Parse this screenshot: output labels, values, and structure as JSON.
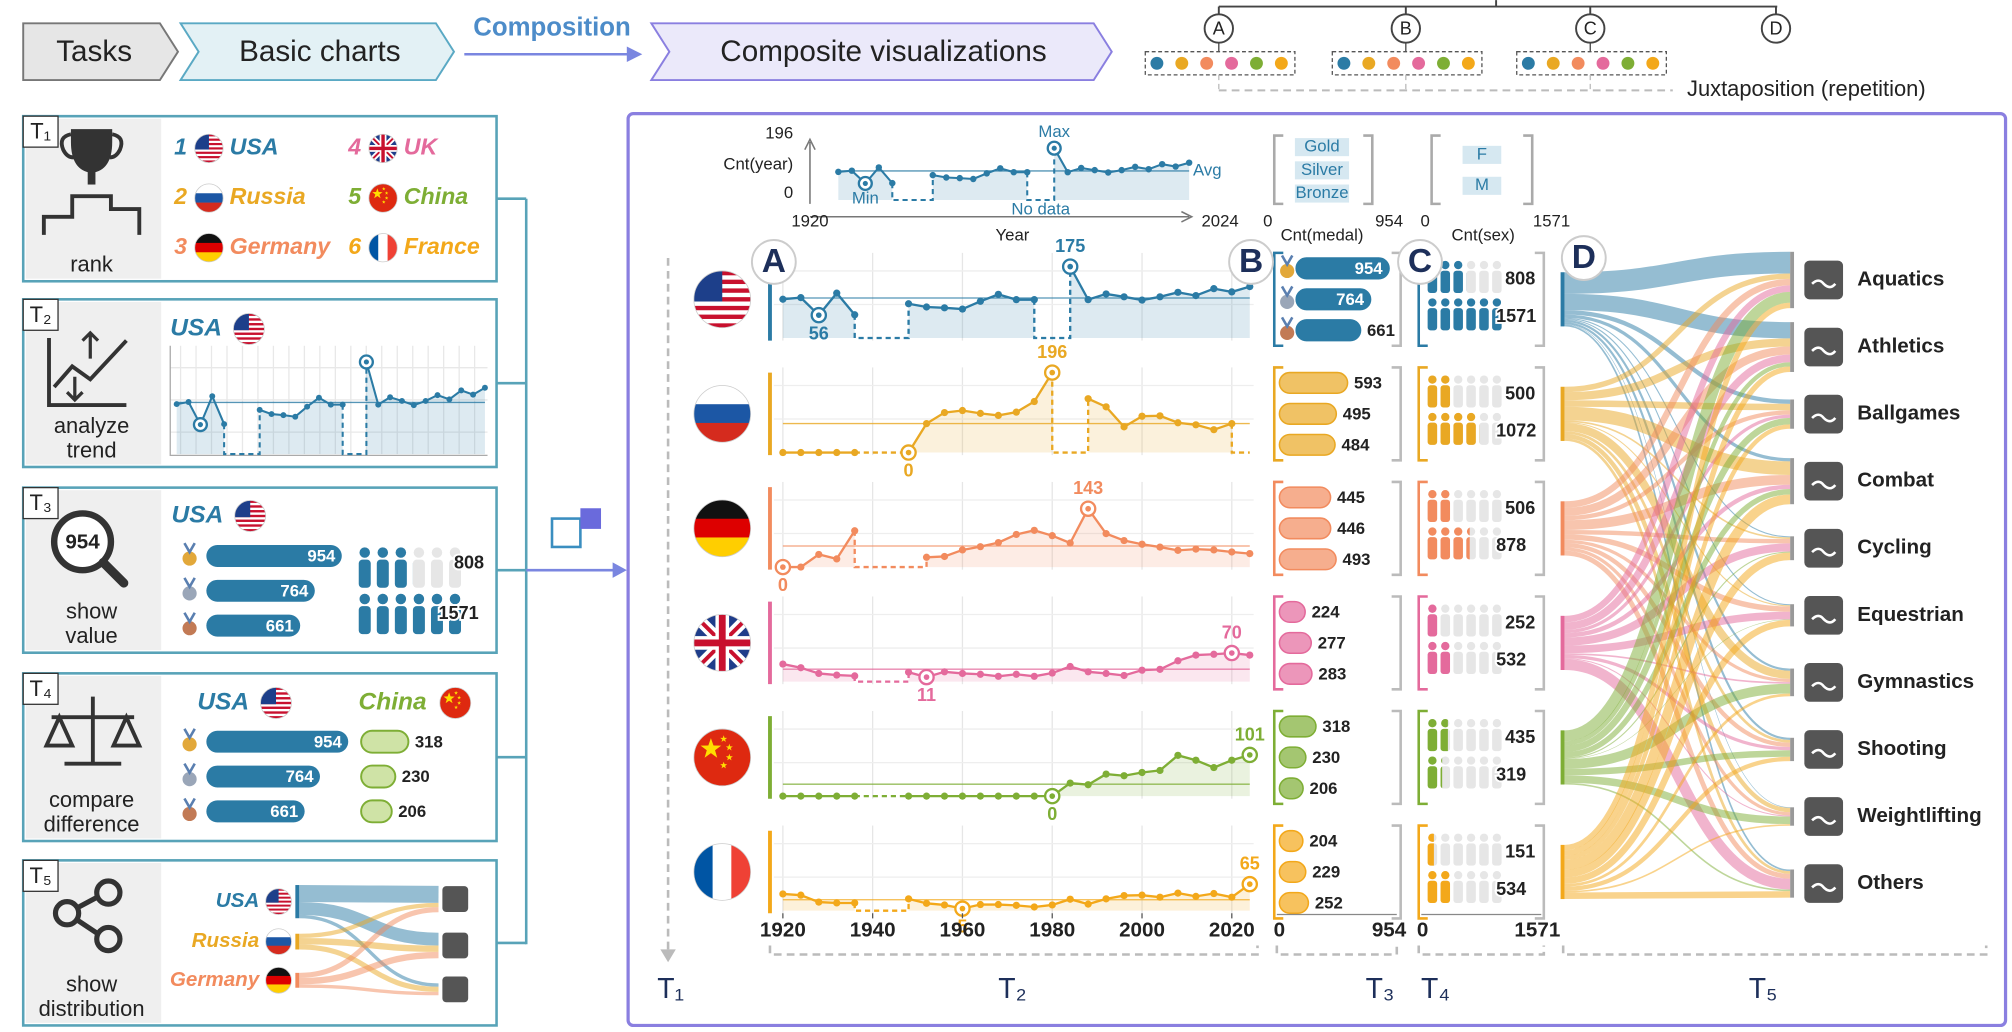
{
  "header": {
    "tasks": "Tasks",
    "basic_charts": "Basic charts",
    "composition": "Composition",
    "composite": "Composite visualizations",
    "tree": [
      "A",
      "B",
      "C",
      "D"
    ],
    "juxtaposition": "Juxtaposition (repetition)"
  },
  "tasks": [
    {
      "id": "T₁",
      "name": [
        "rank"
      ]
    },
    {
      "id": "T₂",
      "name": [
        "analyze",
        "trend"
      ]
    },
    {
      "id": "T₃",
      "name": [
        "show",
        "value"
      ]
    },
    {
      "id": "T₄",
      "name": [
        "compare",
        "difference"
      ]
    },
    {
      "id": "T₅",
      "name": [
        "show",
        "distribution"
      ]
    }
  ],
  "countries": [
    {
      "rank": 1,
      "name": "USA",
      "color": "#2b7ba5"
    },
    {
      "rank": 2,
      "name": "Russia",
      "color": "#e9a823"
    },
    {
      "rank": 3,
      "name": "Germany",
      "color": "#f28b5e"
    },
    {
      "rank": 4,
      "name": "UK",
      "color": "#e46a9c"
    },
    {
      "rank": 5,
      "name": "China",
      "color": "#7eae35"
    },
    {
      "rank": 6,
      "name": "France",
      "color": "#f3a81a"
    }
  ],
  "overview": {
    "y_title": "Cnt(year)",
    "ylim": [
      0,
      196
    ],
    "x_title": "Year",
    "xlim": [
      1920,
      2024
    ],
    "min": "Min",
    "max": "Max",
    "avg": "Avg",
    "no_data": "No data"
  },
  "medal_axis": {
    "title": "Cnt(medal)",
    "lim": [
      0,
      954
    ],
    "types": [
      "Gold",
      "Silver",
      "Bronze"
    ]
  },
  "sex_axis": {
    "title": "Cnt(sex)",
    "lim": [
      0,
      1571
    ],
    "types": [
      "F",
      "M"
    ]
  },
  "years": [
    1920,
    1924,
    1928,
    1932,
    1936,
    1940,
    1944,
    1948,
    1952,
    1956,
    1960,
    1964,
    1968,
    1972,
    1976,
    1980,
    1984,
    1988,
    1992,
    1996,
    2000,
    2004,
    2008,
    2012,
    2016,
    2020,
    2024
  ],
  "xticks": [
    1920,
    1940,
    1960,
    1980,
    2000,
    2020
  ],
  "rows": [
    {
      "values": [
        95,
        99,
        56,
        110,
        57,
        null,
        null,
        84,
        76,
        74,
        71,
        90,
        107,
        94,
        94,
        null,
        175,
        94,
        108,
        101,
        93,
        101,
        112,
        104,
        121,
        113,
        126
      ],
      "highlights": [
        2,
        16
      ],
      "medals": [
        954,
        764,
        661
      ],
      "sex": [
        808,
        1571
      ]
    },
    {
      "values": [
        0,
        0,
        0,
        0,
        0,
        null,
        null,
        0,
        71,
        98,
        103,
        96,
        91,
        99,
        125,
        196,
        null,
        132,
        112,
        63,
        89,
        90,
        73,
        68,
        56,
        71,
        null
      ],
      "highlights": [
        7,
        15
      ],
      "medals": [
        593,
        495,
        484
      ],
      "sex": [
        500,
        1072
      ]
    },
    {
      "values": [
        0,
        0,
        31,
        20,
        89,
        null,
        null,
        null,
        24,
        26,
        42,
        50,
        60,
        80,
        90,
        77,
        59,
        143,
        82,
        65,
        56,
        49,
        41,
        44,
        42,
        37,
        33
      ],
      "highlights": [
        0,
        17
      ],
      "medals": [
        445,
        446,
        493
      ],
      "sex": [
        506,
        878
      ]
    },
    {
      "values": [
        43,
        34,
        20,
        16,
        14,
        null,
        null,
        23,
        11,
        24,
        20,
        18,
        13,
        18,
        13,
        21,
        37,
        24,
        20,
        15,
        28,
        30,
        51,
        65,
        67,
        70,
        65
      ],
      "highlights": [
        8,
        25
      ],
      "medals": [
        224,
        277,
        283
      ],
      "sex": [
        252,
        532
      ]
    },
    {
      "values": [
        0,
        0,
        0,
        0,
        0,
        null,
        null,
        0,
        0,
        0,
        0,
        0,
        0,
        0,
        0,
        0,
        32,
        28,
        54,
        50,
        58,
        63,
        100,
        88,
        70,
        88,
        101
      ],
      "highlights": [
        15,
        26
      ],
      "medals": [
        318,
        230,
        206
      ],
      "sex": [
        435,
        319
      ]
    },
    {
      "values": [
        41,
        38,
        21,
        19,
        19,
        null,
        null,
        29,
        18,
        14,
        5,
        15,
        15,
        13,
        9,
        14,
        28,
        16,
        29,
        37,
        38,
        33,
        43,
        35,
        42,
        33,
        65
      ],
      "highlights": [
        10,
        26
      ],
      "medals": [
        204,
        229,
        252
      ],
      "sex": [
        151,
        534
      ]
    }
  ],
  "sports": [
    "Aquatics",
    "Athletics",
    "Ballgames",
    "Combat",
    "Cycling",
    "Equestrian",
    "Gymnastics",
    "Shooting",
    "Weightlifting",
    "Others"
  ],
  "flows": [
    [
      40,
      30,
      8,
      6,
      2,
      2,
      4,
      4,
      1,
      3
    ],
    [
      10,
      15,
      12,
      25,
      3,
      2,
      15,
      5,
      8,
      5
    ],
    [
      12,
      15,
      8,
      18,
      8,
      10,
      6,
      8,
      6,
      9
    ],
    [
      12,
      14,
      6,
      8,
      15,
      14,
      3,
      6,
      2,
      20
    ],
    [
      20,
      8,
      12,
      10,
      2,
      1,
      18,
      12,
      14,
      3
    ],
    [
      10,
      10,
      8,
      18,
      14,
      12,
      5,
      8,
      3,
      12
    ]
  ]
}
